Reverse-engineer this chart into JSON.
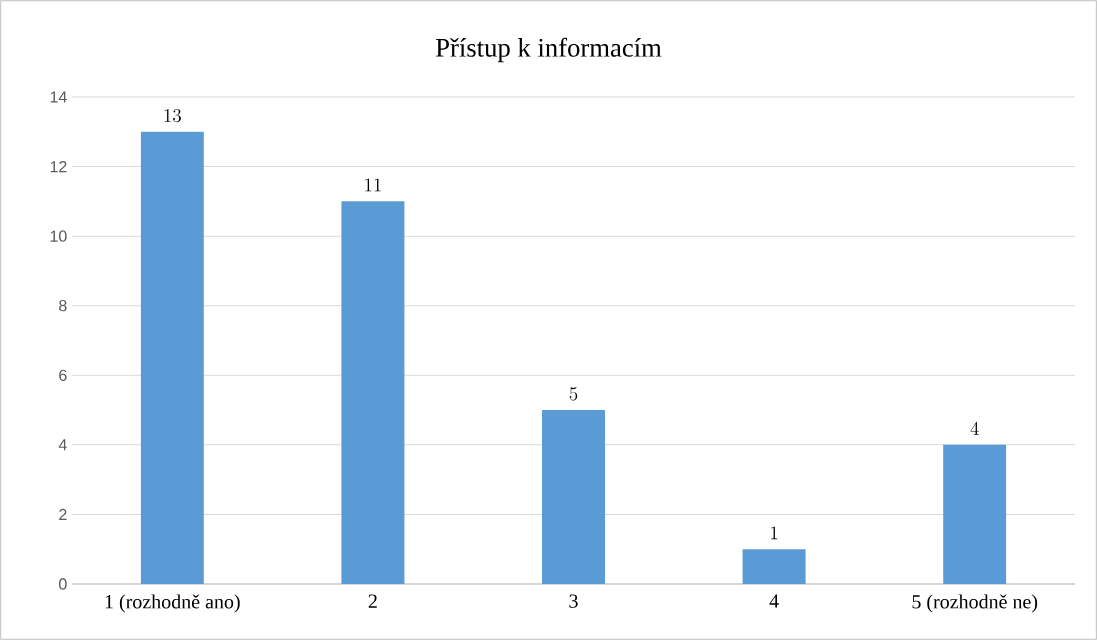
{
  "chart_data": {
    "type": "bar",
    "title": "Přístup k informacím",
    "categories": [
      "1 (rozhodně ano)",
      "2",
      "3",
      "4",
      "5 (rozhodně ne)"
    ],
    "values": [
      13,
      11,
      5,
      1,
      4
    ],
    "color": "#5b9bd5",
    "ylim": [
      0,
      14
    ],
    "yticks": [
      0,
      2,
      4,
      6,
      8,
      10,
      12,
      14
    ],
    "grid": "y",
    "data_labels": true
  }
}
